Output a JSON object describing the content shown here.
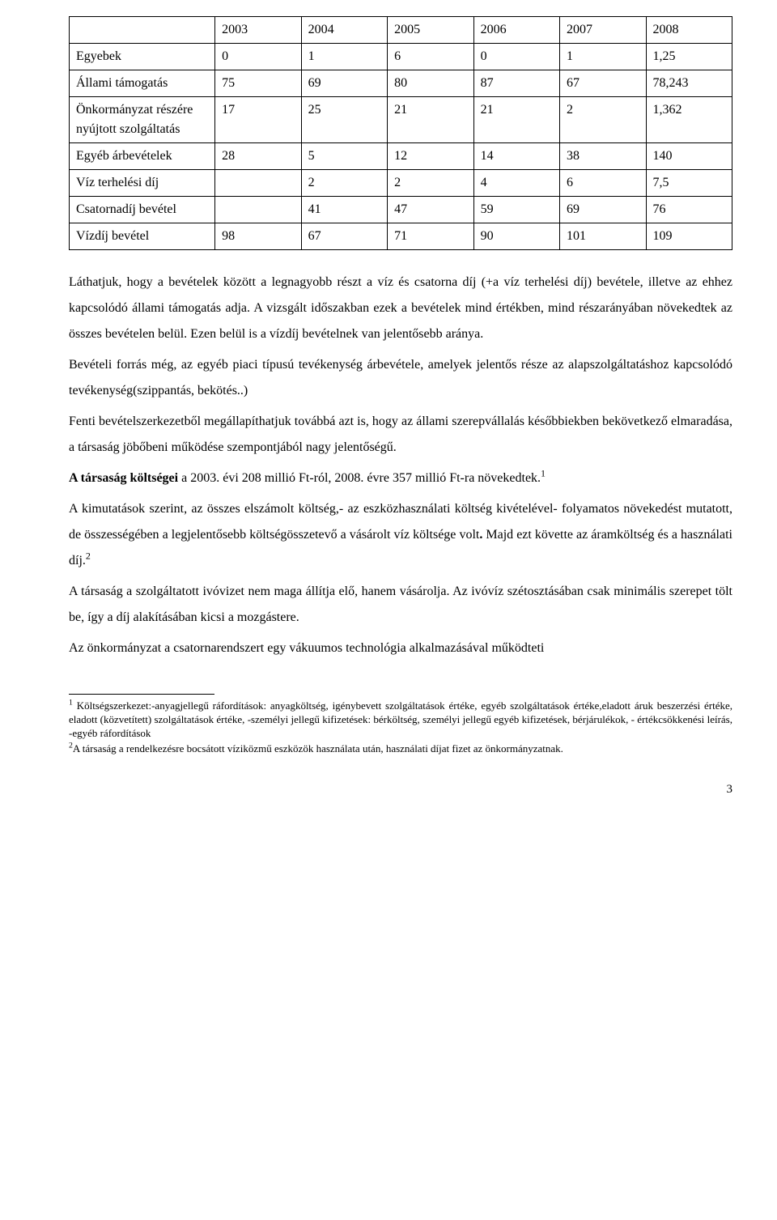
{
  "table": {
    "headers": [
      "",
      "2003",
      "2004",
      "2005",
      "2006",
      "2007",
      "2008"
    ],
    "rows": [
      [
        "Egyebek",
        "0",
        "1",
        "6",
        "0",
        "1",
        "1,25"
      ],
      [
        "Állami támogatás",
        "75",
        "69",
        "80",
        "87",
        "67",
        "78,243"
      ],
      [
        "Önkormányzat részére nyújtott szolgáltatás",
        "17",
        "25",
        "21",
        "21",
        "2",
        "1,362"
      ],
      [
        "Egyéb árbevételek",
        "28",
        "5",
        "12",
        "14",
        "38",
        "140"
      ],
      [
        "Víz terhelési díj",
        "",
        "2",
        "2",
        "4",
        "6",
        "7,5"
      ],
      [
        "Csatornadíj bevétel",
        "",
        "41",
        "47",
        "59",
        "69",
        "76"
      ],
      [
        "Vízdíj bevétel",
        "98",
        "67",
        "71",
        "90",
        "101",
        "109"
      ]
    ]
  },
  "paragraphs": {
    "p1": "Láthatjuk, hogy a bevételek között a legnagyobb részt a víz és csatorna díj (+a víz terhelési díj) bevétele, illetve az ehhez kapcsolódó állami támogatás adja. A vizsgált időszakban ezek a bevételek mind értékben, mind részarányában növekedtek az összes bevételen belül. Ezen belül is a vízdíj bevételnek van jelentősebb aránya.",
    "p2": "Bevételi forrás még, az egyéb piaci típusú tevékenység árbevétele, amelyek jelentős része az alapszolgáltatáshoz kapcsolódó tevékenység(szippantás, bekötés..)",
    "p3": "Fenti bevételszerkezetből megállapíthatjuk továbbá azt is, hogy az állami szerepvállalás későbbiekben bekövetkező elmaradása, a társaság jöbőbeni működése szempontjából nagy jelentőségű.",
    "p4a": "A társaság költségei",
    "p4b": " a 2003. évi 208 millió Ft-ról, 2008. évre 357 millió Ft-ra növekedtek.",
    "p5a": "A kimutatások szerint, az összes elszámolt költség,- az eszközhasználati költség kivételével- folyamatos növekedést mutatott, de összességében a legjelentősebb költségösszetevő a vásárolt víz költsége volt",
    "p5b": ". ",
    "p5c": "Majd ezt követte az áramköltség és a használati díj.",
    "p6": "A társaság a szolgáltatott ivóvizet nem maga állítja elő, hanem vásárolja. Az ivóvíz szétosztásában csak minimális szerepet tölt be, így a díj alakításában kicsi a mozgástere.",
    "p7": "Az önkormányzat a csatornarendszert egy vákuumos technológia alkalmazásával működteti"
  },
  "footnotes": {
    "f1": " Költségszerkezet:-anyagjellegű ráfordítások: anyagköltség, igénybevett szolgáltatások értéke, egyéb szolgáltatások értéke,eladott áruk beszerzési értéke, eladott (közvetített) szolgáltatások értéke, -személyi jellegű kifizetések: bérköltség, személyi jellegű egyéb kifizetések, bérjárulékok, - értékcsökkenési leírás, -egyéb ráfordítások",
    "f2": "A társaság a rendelkezésre bocsátott víziközmű eszközök használata után, használati díjat fizet az önkormányzatnak."
  },
  "footnote_marks": {
    "m1": "1",
    "m2": "2"
  },
  "page_number": "3"
}
